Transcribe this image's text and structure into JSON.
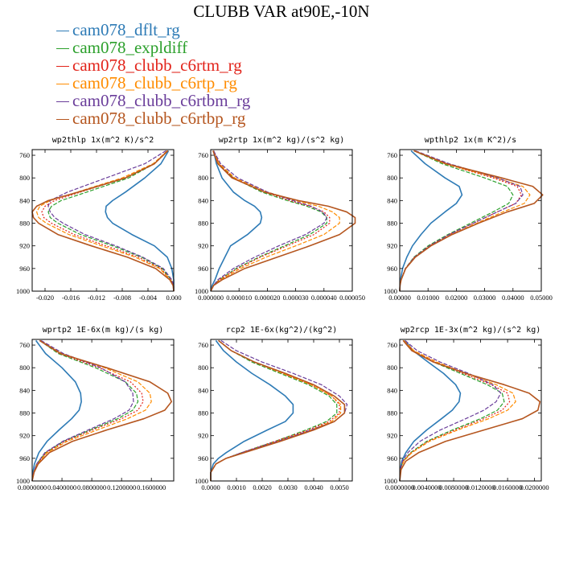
{
  "figure": {
    "title": "CLUBB VAR at90E,-10N"
  },
  "legend": [
    {
      "label": "cam078_dflt_rg",
      "color": "#2e7bb6"
    },
    {
      "label": "cam078_expldiff",
      "color": "#2ca02c"
    },
    {
      "label": "cam078_clubb_c6rtm_rg",
      "color": "#e2231a"
    },
    {
      "label": "cam078_clubb_c6rtp_rg",
      "color": "#ff8c00"
    },
    {
      "label": "cam078_clubb_c6rtbm_rg",
      "color": "#6a3d9a"
    },
    {
      "label": "cam078_clubb_c6rtbp_rg",
      "color": "#b5561f"
    }
  ],
  "chart_data": [
    {
      "type": "line",
      "title": "wp2thlp   1x(m^2 K)/s^2",
      "xlim": [
        -0.022,
        0.0
      ],
      "ylim": [
        1000,
        750
      ],
      "xticks": [
        -0.02,
        -0.016,
        -0.012,
        -0.008,
        -0.004,
        0.0
      ],
      "xtick_labels": [
        "-0.020",
        "-0.016",
        "-0.012",
        "-0.008",
        "-0.004",
        "0.000"
      ],
      "yticks": [
        760,
        800,
        840,
        880,
        920,
        960,
        1000
      ],
      "y": [
        752,
        775,
        800,
        825,
        840,
        850,
        860,
        870,
        880,
        900,
        920,
        940,
        960,
        980,
        990,
        1000
      ],
      "series": [
        {
          "name": "cam078_dflt_rg",
          "x": [
            -0.0008,
            -0.002,
            -0.0045,
            -0.0075,
            -0.0095,
            -0.0105,
            -0.0106,
            -0.0103,
            -0.0095,
            -0.0065,
            -0.003,
            -0.001,
            -0.0003,
            0.0,
            0.0,
            0.0
          ]
        },
        {
          "name": "cam078_expldiff",
          "x": [
            -0.001,
            -0.003,
            -0.007,
            -0.0135,
            -0.0175,
            -0.019,
            -0.0195,
            -0.0192,
            -0.018,
            -0.0145,
            -0.0095,
            -0.005,
            -0.0018,
            -0.0004,
            0.0,
            0.0
          ]
        },
        {
          "name": "cam078_clubb_c6rtm_rg",
          "x": [
            -0.001,
            -0.003,
            -0.0075,
            -0.0145,
            -0.0185,
            -0.02,
            -0.0205,
            -0.0202,
            -0.019,
            -0.0155,
            -0.0105,
            -0.0055,
            -0.002,
            -0.0005,
            0.0,
            0.0
          ]
        },
        {
          "name": "cam078_clubb_c6rtp_rg",
          "x": [
            -0.001,
            -0.0032,
            -0.008,
            -0.015,
            -0.0192,
            -0.0208,
            -0.0213,
            -0.021,
            -0.0198,
            -0.0163,
            -0.0112,
            -0.006,
            -0.0022,
            -0.0005,
            0.0,
            0.0
          ]
        },
        {
          "name": "cam078_clubb_c6rtbm_rg",
          "x": [
            -0.0012,
            -0.0045,
            -0.0105,
            -0.0165,
            -0.0192,
            -0.0195,
            -0.0192,
            -0.0185,
            -0.0172,
            -0.0138,
            -0.009,
            -0.0048,
            -0.0016,
            -0.0003,
            0.0,
            0.0
          ]
        },
        {
          "name": "cam078_clubb_c6rtbp_rg",
          "x": [
            -0.0009,
            -0.003,
            -0.0075,
            -0.0148,
            -0.0195,
            -0.0213,
            -0.022,
            -0.0218,
            -0.021,
            -0.018,
            -0.0128,
            -0.0072,
            -0.0028,
            -0.0006,
            -0.0001,
            0.0
          ]
        }
      ]
    },
    {
      "type": "line",
      "title": "wp2rtp   1x(m^2 kg)/(s^2 kg)",
      "xlim": [
        0.0,
        5e-05
      ],
      "ylim": [
        1000,
        750
      ],
      "xticks": [
        0.0,
        1e-05,
        2e-05,
        3e-05,
        4e-05,
        5e-05
      ],
      "xtick_labels": [
        "0.000000",
        "0.000010",
        "0.000020",
        "0.000030",
        "0.000040",
        "0.000050"
      ],
      "yticks": [
        760,
        800,
        840,
        880,
        920,
        960,
        1000
      ],
      "y": [
        752,
        775,
        800,
        825,
        840,
        850,
        860,
        870,
        880,
        900,
        920,
        940,
        960,
        980,
        990,
        1000
      ],
      "series": [
        {
          "name": "cam078_dflt_rg",
          "x": [
            1e-06,
            2e-06,
            4e-06,
            8e-06,
            1.2e-05,
            1.55e-05,
            1.75e-05,
            1.8e-05,
            1.75e-05,
            1.3e-05,
            7e-06,
            5e-06,
            3e-06,
            1.5e-06,
            5e-07,
            0.0
          ]
        },
        {
          "name": "cam078_expldiff",
          "x": [
            1e-06,
            3e-06,
            8e-06,
            1.8e-05,
            2.7e-05,
            3.4e-05,
            3.9e-05,
            4.1e-05,
            4.1e-05,
            3.5e-05,
            2.6e-05,
            1.7e-05,
            9e-06,
            3e-06,
            1e-06,
            0.0
          ]
        },
        {
          "name": "cam078_clubb_c6rtm_rg",
          "x": [
            1e-06,
            3e-06,
            8e-06,
            1.9e-05,
            2.8e-05,
            3.5e-05,
            4e-05,
            4.2e-05,
            4.2e-05,
            3.65e-05,
            2.7e-05,
            1.75e-05,
            9.5e-06,
            3e-06,
            1e-06,
            0.0
          ]
        },
        {
          "name": "cam078_clubb_c6rtp_rg",
          "x": [
            1e-06,
            3e-06,
            8.5e-06,
            2e-05,
            3e-05,
            3.8e-05,
            4.3e-05,
            4.55e-05,
            4.55e-05,
            4e-05,
            3e-05,
            1.95e-05,
            1.05e-05,
            3.5e-06,
            1e-06,
            0.0
          ]
        },
        {
          "name": "cam078_clubb_c6rtbm_rg",
          "x": [
            1e-06,
            3.5e-06,
            9.5e-06,
            2e-05,
            2.9e-05,
            3.55e-05,
            3.95e-05,
            4.1e-05,
            4e-05,
            3.35e-05,
            2.4e-05,
            1.55e-05,
            8e-06,
            2.5e-06,
            1e-06,
            0.0
          ]
        },
        {
          "name": "cam078_clubb_c6rtbp_rg",
          "x": [
            8e-07,
            2.5e-06,
            7.5e-06,
            1.9e-05,
            3.1e-05,
            4.15e-05,
            4.8e-05,
            5.1e-05,
            5.1e-05,
            4.55e-05,
            3.5e-05,
            2.35e-05,
            1.2e-05,
            4e-06,
            1e-06,
            0.0
          ]
        }
      ]
    },
    {
      "type": "line",
      "title": "wpthlp2   1x(m K^2)/s",
      "xlim": [
        0.0,
        0.05
      ],
      "ylim": [
        1000,
        750
      ],
      "xticks": [
        0.0,
        0.01,
        0.02,
        0.03,
        0.04,
        0.05
      ],
      "xtick_labels": [
        "0.00000",
        "0.01000",
        "0.02000",
        "0.03000",
        "0.04000",
        "0.05000"
      ],
      "yticks": [
        760,
        800,
        840,
        880,
        920,
        960,
        1000
      ],
      "y": [
        752,
        775,
        800,
        815,
        830,
        845,
        860,
        880,
        900,
        920,
        940,
        960,
        980,
        990,
        1000
      ],
      "series": [
        {
          "name": "cam078_dflt_rg",
          "x": [
            0.004,
            0.009,
            0.016,
            0.021,
            0.022,
            0.02,
            0.016,
            0.011,
            0.0075,
            0.0045,
            0.0025,
            0.001,
            0.0003,
            0.0001,
            0.0
          ]
        },
        {
          "name": "cam078_expldiff",
          "x": [
            0.005,
            0.015,
            0.03,
            0.038,
            0.04,
            0.0385,
            0.033,
            0.025,
            0.017,
            0.01,
            0.005,
            0.002,
            0.0005,
            0.0001,
            0.0
          ]
        },
        {
          "name": "cam078_clubb_c6rtm_rg",
          "x": [
            0.005,
            0.016,
            0.033,
            0.0415,
            0.043,
            0.041,
            0.0345,
            0.026,
            0.0175,
            0.0105,
            0.0052,
            0.002,
            0.0005,
            0.0001,
            0.0
          ]
        },
        {
          "name": "cam078_clubb_c6rtp_rg",
          "x": [
            0.005,
            0.016,
            0.034,
            0.0435,
            0.046,
            0.044,
            0.0365,
            0.0272,
            0.0182,
            0.0108,
            0.0054,
            0.0021,
            0.0005,
            0.0001,
            0.0
          ]
        },
        {
          "name": "cam078_clubb_c6rtbm_rg",
          "x": [
            0.0055,
            0.0175,
            0.0345,
            0.0425,
            0.0435,
            0.041,
            0.0345,
            0.026,
            0.0175,
            0.0105,
            0.0052,
            0.002,
            0.0005,
            0.0001,
            0.0
          ]
        },
        {
          "name": "cam078_clubb_c6rtbp_rg",
          "x": [
            0.005,
            0.0165,
            0.036,
            0.047,
            0.0505,
            0.0475,
            0.038,
            0.0278,
            0.0185,
            0.011,
            0.0055,
            0.0021,
            0.0005,
            0.0001,
            0.0
          ]
        }
      ]
    },
    {
      "type": "line",
      "title": "wprtp2   1E-6x(m kg)/(s kg)",
      "xlim": [
        0.0,
        0.19
      ],
      "ylim": [
        1000,
        750
      ],
      "xticks": [
        0.0,
        0.04,
        0.08,
        0.12,
        0.16
      ],
      "xtick_labels": [
        "0.0000000",
        "0.0400000",
        "0.0800000",
        "0.1200000",
        "0.1600000"
      ],
      "yticks": [
        760,
        800,
        840,
        880,
        920,
        960,
        1000
      ],
      "y": [
        752,
        775,
        800,
        825,
        845,
        860,
        875,
        890,
        910,
        930,
        950,
        970,
        985,
        1000
      ],
      "series": [
        {
          "name": "cam078_dflt_rg",
          "x": [
            0.005,
            0.018,
            0.04,
            0.058,
            0.065,
            0.066,
            0.063,
            0.053,
            0.036,
            0.02,
            0.009,
            0.003,
            0.001,
            0.0
          ]
        },
        {
          "name": "cam078_expldiff",
          "x": [
            0.01,
            0.035,
            0.085,
            0.125,
            0.14,
            0.142,
            0.135,
            0.115,
            0.078,
            0.042,
            0.018,
            0.006,
            0.002,
            0.0
          ]
        },
        {
          "name": "cam078_clubb_c6rtm_rg",
          "x": [
            0.01,
            0.037,
            0.09,
            0.132,
            0.147,
            0.149,
            0.142,
            0.12,
            0.081,
            0.044,
            0.019,
            0.0065,
            0.002,
            0.0
          ]
        },
        {
          "name": "cam078_clubb_c6rtp_rg",
          "x": [
            0.011,
            0.04,
            0.097,
            0.142,
            0.158,
            0.16,
            0.152,
            0.128,
            0.087,
            0.047,
            0.02,
            0.007,
            0.002,
            0.0
          ]
        },
        {
          "name": "cam078_clubb_c6rtbm_rg",
          "x": [
            0.012,
            0.042,
            0.092,
            0.125,
            0.135,
            0.136,
            0.13,
            0.11,
            0.075,
            0.041,
            0.017,
            0.006,
            0.002,
            0.0
          ]
        },
        {
          "name": "cam078_clubb_c6rtbp_rg",
          "x": [
            0.01,
            0.038,
            0.1,
            0.158,
            0.182,
            0.187,
            0.178,
            0.15,
            0.1,
            0.054,
            0.023,
            0.008,
            0.0025,
            0.0
          ]
        }
      ]
    },
    {
      "type": "line",
      "title": "rcp2   1E-6x(kg^2)/(kg^2)",
      "xlim": [
        0.0,
        0.0055
      ],
      "ylim": [
        1000,
        750
      ],
      "xticks": [
        0.0,
        0.001,
        0.002,
        0.003,
        0.004,
        0.005
      ],
      "xtick_labels": [
        "0.0000",
        "0.0010",
        "0.0020",
        "0.0030",
        "0.0040",
        "0.0050"
      ],
      "yticks": [
        760,
        800,
        840,
        880,
        920,
        960,
        1000
      ],
      "y": [
        752,
        770,
        790,
        810,
        830,
        850,
        865,
        880,
        895,
        910,
        930,
        950,
        960,
        970,
        985,
        1000
      ],
      "series": [
        {
          "name": "cam078_dflt_rg",
          "x": [
            0.0002,
            0.0005,
            0.001,
            0.0016,
            0.0023,
            0.0029,
            0.0032,
            0.0032,
            0.0029,
            0.0022,
            0.0013,
            0.0006,
            0.0003,
            0.0001,
            0.0,
            0.0
          ]
        },
        {
          "name": "cam078_expldiff",
          "x": [
            0.0003,
            0.0008,
            0.0016,
            0.0027,
            0.0038,
            0.0046,
            0.0049,
            0.0049,
            0.0045,
            0.0037,
            0.0025,
            0.0012,
            0.0006,
            0.0002,
            0.0,
            0.0
          ]
        },
        {
          "name": "cam078_clubb_c6rtm_rg",
          "x": [
            0.0003,
            0.0008,
            0.0017,
            0.0028,
            0.0039,
            0.0047,
            0.005,
            0.005,
            0.0046,
            0.0038,
            0.0025,
            0.0012,
            0.0006,
            0.0002,
            0.0,
            0.0
          ]
        },
        {
          "name": "cam078_clubb_c6rtp_rg",
          "x": [
            0.0003,
            0.0008,
            0.0017,
            0.0028,
            0.0039,
            0.0047,
            0.00505,
            0.00505,
            0.0047,
            0.0039,
            0.0026,
            0.0013,
            0.0006,
            0.0002,
            0.0,
            0.0
          ]
        },
        {
          "name": "cam078_clubb_c6rtbm_rg",
          "x": [
            0.0004,
            0.001,
            0.002,
            0.0032,
            0.0043,
            0.005,
            0.0053,
            0.0052,
            0.0048,
            0.0039,
            0.0026,
            0.0012,
            0.0006,
            0.0002,
            0.0,
            0.0
          ]
        },
        {
          "name": "cam078_clubb_c6rtbp_rg",
          "x": [
            0.0003,
            0.0008,
            0.0017,
            0.0029,
            0.004,
            0.0048,
            0.0052,
            0.0052,
            0.0048,
            0.004,
            0.0027,
            0.0013,
            0.0006,
            0.0002,
            0.0,
            0.0
          ]
        }
      ]
    },
    {
      "type": "line",
      "title": "wp2rcp   1E-3x(m^2 kg)/(s^2 kg)",
      "xlim": [
        0.0,
        0.021
      ],
      "ylim": [
        1000,
        750
      ],
      "xticks": [
        0.0,
        0.004,
        0.008,
        0.012,
        0.016,
        0.02
      ],
      "xtick_labels": [
        "0.0000000",
        "0.0040000",
        "0.0080000",
        "0.0120000",
        "0.0160000",
        "0.0200000"
      ],
      "yticks": [
        760,
        800,
        840,
        880,
        920,
        960,
        1000
      ],
      "y": [
        752,
        770,
        790,
        810,
        830,
        845,
        860,
        875,
        890,
        910,
        930,
        950,
        965,
        980,
        1000
      ],
      "series": [
        {
          "name": "cam078_dflt_rg",
          "x": [
            0.0008,
            0.002,
            0.0042,
            0.0065,
            0.0083,
            0.009,
            0.0088,
            0.0078,
            0.0062,
            0.004,
            0.0021,
            0.0009,
            0.0003,
            0.0001,
            0.0
          ]
        },
        {
          "name": "cam078_expldiff",
          "x": [
            0.0006,
            0.002,
            0.005,
            0.009,
            0.013,
            0.0152,
            0.0155,
            0.0145,
            0.012,
            0.0078,
            0.004,
            0.0016,
            0.0005,
            0.0001,
            0.0
          ]
        },
        {
          "name": "cam078_clubb_c6rtm_rg",
          "x": [
            0.0006,
            0.002,
            0.0052,
            0.0094,
            0.0136,
            0.016,
            0.0163,
            0.0152,
            0.0125,
            0.0082,
            0.0042,
            0.0017,
            0.0005,
            0.0001,
            0.0
          ]
        },
        {
          "name": "cam078_clubb_c6rtp_rg",
          "x": [
            0.0006,
            0.0021,
            0.0055,
            0.0098,
            0.0143,
            0.0168,
            0.0172,
            0.016,
            0.0132,
            0.0086,
            0.0044,
            0.0018,
            0.0006,
            0.0001,
            0.0
          ]
        },
        {
          "name": "cam078_clubb_c6rtbm_rg",
          "x": [
            0.0008,
            0.0026,
            0.006,
            0.0102,
            0.0138,
            0.015,
            0.0143,
            0.0125,
            0.0098,
            0.006,
            0.003,
            0.0012,
            0.0004,
            0.0001,
            0.0
          ]
        },
        {
          "name": "cam078_clubb_c6rtbp_rg",
          "x": [
            0.0005,
            0.0018,
            0.005,
            0.0098,
            0.0155,
            0.0192,
            0.0208,
            0.0205,
            0.0182,
            0.0125,
            0.0068,
            0.0028,
            0.0009,
            0.0002,
            0.0
          ]
        }
      ]
    }
  ]
}
